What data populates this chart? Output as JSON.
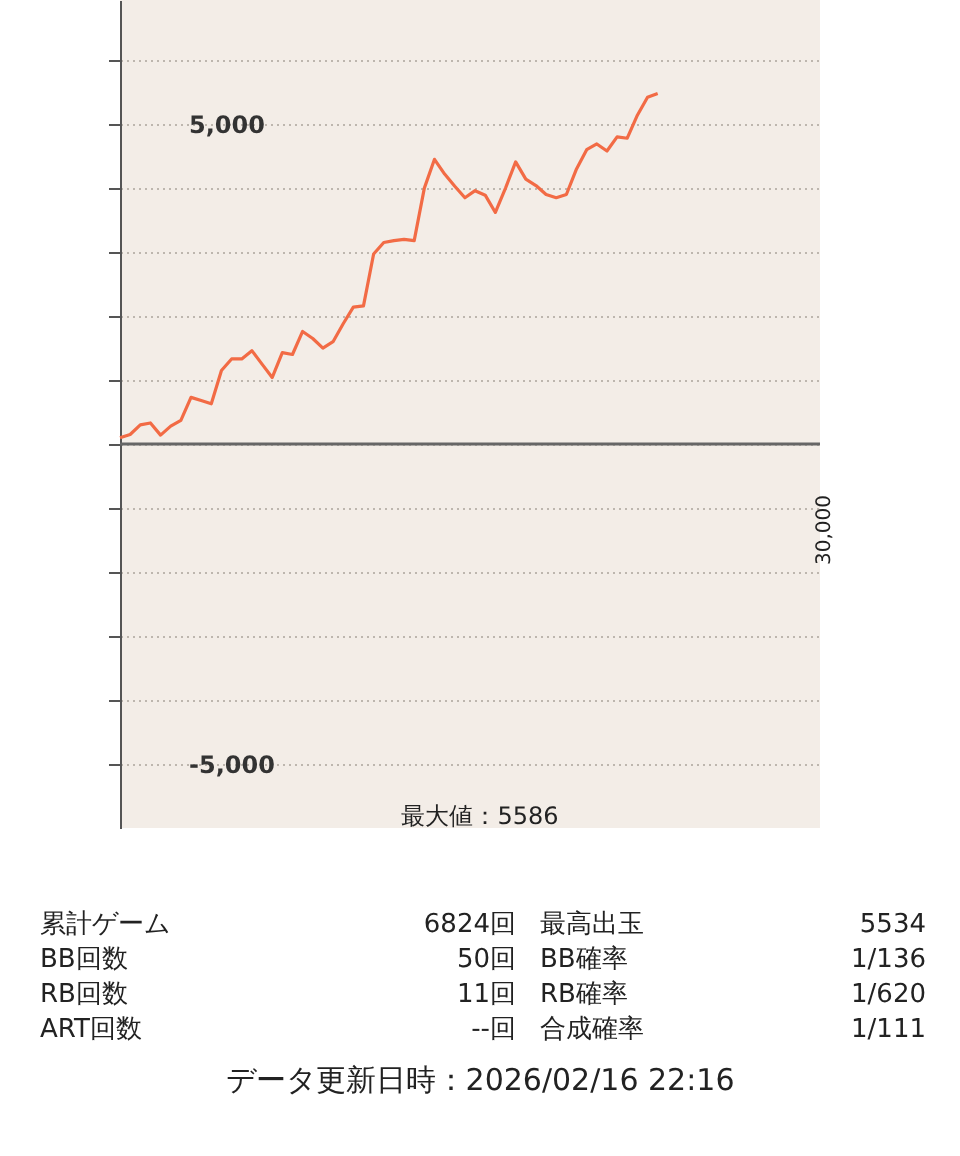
{
  "chart_data": {
    "type": "line",
    "categories": [
      null,
      null,
      null,
      null,
      null,
      null,
      null,
      null,
      null,
      null,
      null,
      null,
      null,
      null,
      null,
      null,
      null,
      null,
      null,
      null,
      null,
      null,
      null,
      null,
      null,
      null,
      null,
      null,
      null,
      null,
      null,
      null,
      null,
      null,
      null,
      null,
      null,
      null,
      null,
      null,
      null,
      null,
      null,
      null,
      null,
      null,
      null,
      null,
      null,
      null,
      null,
      null,
      null,
      null,
      null,
      null,
      null,
      null,
      null,
      null,
      null,
      null,
      null,
      null,
      null,
      null,
      null,
      null,
      null,
      null
    ],
    "series": [
      {
        "color": "#f26b45",
        "values": [
          100,
          150,
          300,
          330,
          140,
          280,
          370,
          730,
          680,
          630,
          1150,
          1330,
          1330,
          1460,
          1250,
          1040,
          1430,
          1400,
          1760,
          1650,
          1500,
          1600,
          1880,
          2140,
          2160,
          2970,
          3150,
          3180,
          3200,
          3180,
          4000,
          4450,
          4220,
          4030,
          3850,
          3960,
          3890,
          3620,
          4000,
          4410,
          4140,
          4040,
          3900,
          3850,
          3900,
          4300,
          4600,
          4690,
          4580,
          4800,
          4780,
          5140,
          5420,
          5480,
          null,
          null,
          null,
          null,
          null,
          null,
          null,
          null,
          null,
          null,
          null,
          null,
          null,
          null,
          null,
          null
        ]
      }
    ],
    "ylim": [
      -6000,
      6940
    ],
    "yticks": [
      {
        "value": -5000,
        "label": "-5,000"
      },
      {
        "value": -4000,
        "label": null
      },
      {
        "value": -3000,
        "label": null
      },
      {
        "value": -2000,
        "label": null
      },
      {
        "value": -1000,
        "label": null
      },
      {
        "value": 0,
        "label": null
      },
      {
        "value": 1000,
        "label": null
      },
      {
        "value": 2000,
        "label": null
      },
      {
        "value": 3000,
        "label": null
      },
      {
        "value": 4000,
        "label": null
      },
      {
        "value": 5000,
        "label": "5,000"
      },
      {
        "value": 6000,
        "label": null
      }
    ],
    "grid": "y",
    "tick_labels": "y",
    "ref_lines": [
      {
        "axis": "y",
        "value": 0,
        "color": "#666666"
      }
    ],
    "annotations": [
      "最大値：5586",
      "30,000",
      "累計ゲーム",
      "6824回",
      "最高出玉",
      "5534",
      "BB回数",
      "50回",
      "BB確率",
      "1/136",
      "RB回数",
      "11回",
      "RB確率",
      "1/620",
      "ART回数",
      "--回",
      "合成確率",
      "1/111",
      "データ更新日時：2026/02/16 22:16"
    ]
  }
}
